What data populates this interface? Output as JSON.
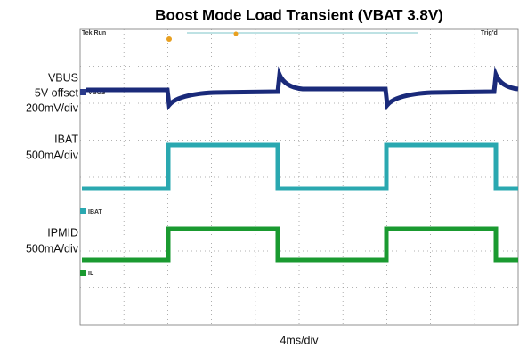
{
  "title": "Boost Mode Load Transient (VBAT 3.8V)",
  "scope": {
    "status": "Tek Run",
    "trigger": "Trig'd"
  },
  "left_labels": [
    {
      "lines": [
        "VBUS",
        "5V offset",
        "200mV/div"
      ]
    },
    {
      "lines": [
        "IBAT",
        "500mA/div"
      ]
    },
    {
      "lines": [
        "IPMID",
        "500mA/div"
      ]
    }
  ],
  "channel_markers": [
    "VBUS",
    "IBAT",
    "IL"
  ],
  "timebase": "4ms/div"
}
